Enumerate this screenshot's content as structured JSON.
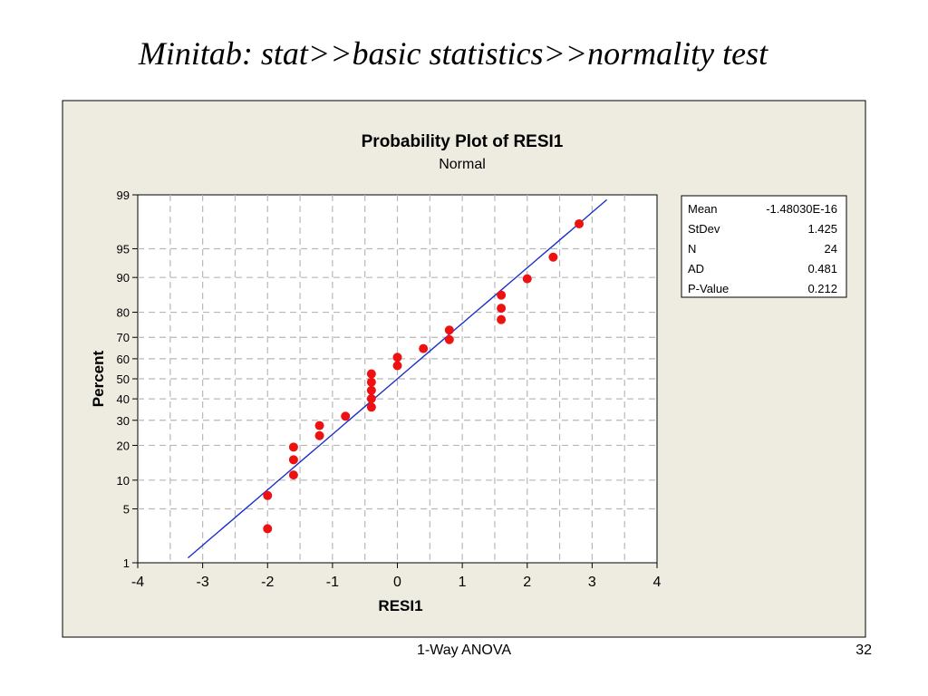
{
  "slide": {
    "title": "Minitab: stat>>basic statistics>>normality test",
    "footer": "1-Way ANOVA",
    "page_number": "32"
  },
  "chart_data": {
    "type": "scatter",
    "title": "Probability Plot of RESI1",
    "subtitle": "Normal",
    "xlabel": "RESI1",
    "ylabel": "Percent",
    "xlim": [
      -4,
      4
    ],
    "xticks": [
      -4,
      -3,
      -2,
      -1,
      0,
      1,
      2,
      3,
      4
    ],
    "yscale": "normal-probability",
    "ylim": [
      1,
      99
    ],
    "yticks": [
      1,
      5,
      10,
      20,
      30,
      40,
      50,
      60,
      70,
      80,
      90,
      95,
      99
    ],
    "grid": true,
    "colors": {
      "points": "#ee1111",
      "fit_line": "#1a2fcc",
      "frame_bg": "#eeece1",
      "plot_bg": "#ffffff"
    },
    "fit_line": {
      "mean": 0,
      "stdev": 1.425
    },
    "points": [
      {
        "x": -2.0,
        "y": 2.9
      },
      {
        "x": -2.0,
        "y": 7.0
      },
      {
        "x": -1.6,
        "y": 11.2
      },
      {
        "x": -1.6,
        "y": 15.3
      },
      {
        "x": -1.6,
        "y": 19.4
      },
      {
        "x": -1.2,
        "y": 23.6
      },
      {
        "x": -1.2,
        "y": 27.7
      },
      {
        "x": -0.8,
        "y": 31.8
      },
      {
        "x": -0.4,
        "y": 36.0
      },
      {
        "x": -0.4,
        "y": 40.1
      },
      {
        "x": -0.4,
        "y": 44.2
      },
      {
        "x": -0.4,
        "y": 48.3
      },
      {
        "x": -0.4,
        "y": 52.5
      },
      {
        "x": 0.0,
        "y": 56.6
      },
      {
        "x": 0.0,
        "y": 60.7
      },
      {
        "x": 0.4,
        "y": 64.9
      },
      {
        "x": 0.8,
        "y": 69.0
      },
      {
        "x": 0.8,
        "y": 73.1
      },
      {
        "x": 1.6,
        "y": 77.3
      },
      {
        "x": 1.6,
        "y": 81.4
      },
      {
        "x": 1.6,
        "y": 85.5
      },
      {
        "x": 2.0,
        "y": 89.7
      },
      {
        "x": 2.4,
        "y": 93.8
      },
      {
        "x": 2.8,
        "y": 97.5
      }
    ],
    "stats": [
      {
        "label": "Mean",
        "value": "-1.48030E-16"
      },
      {
        "label": "StDev",
        "value": "1.425"
      },
      {
        "label": "N",
        "value": "24"
      },
      {
        "label": "AD",
        "value": "0.481"
      },
      {
        "label": "P-Value",
        "value": "0.212"
      }
    ]
  }
}
